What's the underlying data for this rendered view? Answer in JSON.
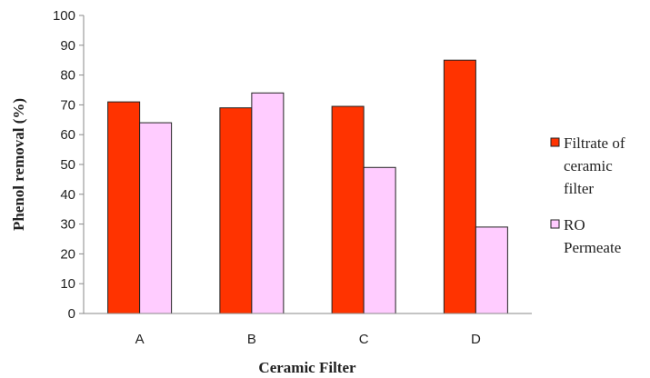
{
  "chart_data": {
    "type": "bar",
    "title": "",
    "xlabel": "Ceramic Filter",
    "ylabel": "Phenol removal (%)",
    "ylim": [
      0,
      100
    ],
    "yticks": [
      0,
      10,
      20,
      30,
      40,
      50,
      60,
      70,
      80,
      90,
      100
    ],
    "categories": [
      "A",
      "B",
      "C",
      "D"
    ],
    "series": [
      {
        "name": "Filtrate of ceramic filter",
        "legend_lines": [
          "Filtrate of",
          "ceramic",
          "filter"
        ],
        "color": "#ff3300",
        "values": [
          71,
          69,
          69.5,
          85
        ]
      },
      {
        "name": "RO Permeate",
        "legend_lines": [
          "RO",
          "Permeate"
        ],
        "color": "#ffccff",
        "values": [
          64,
          74,
          49,
          29
        ]
      }
    ],
    "grid": false,
    "legend_position": "right"
  }
}
